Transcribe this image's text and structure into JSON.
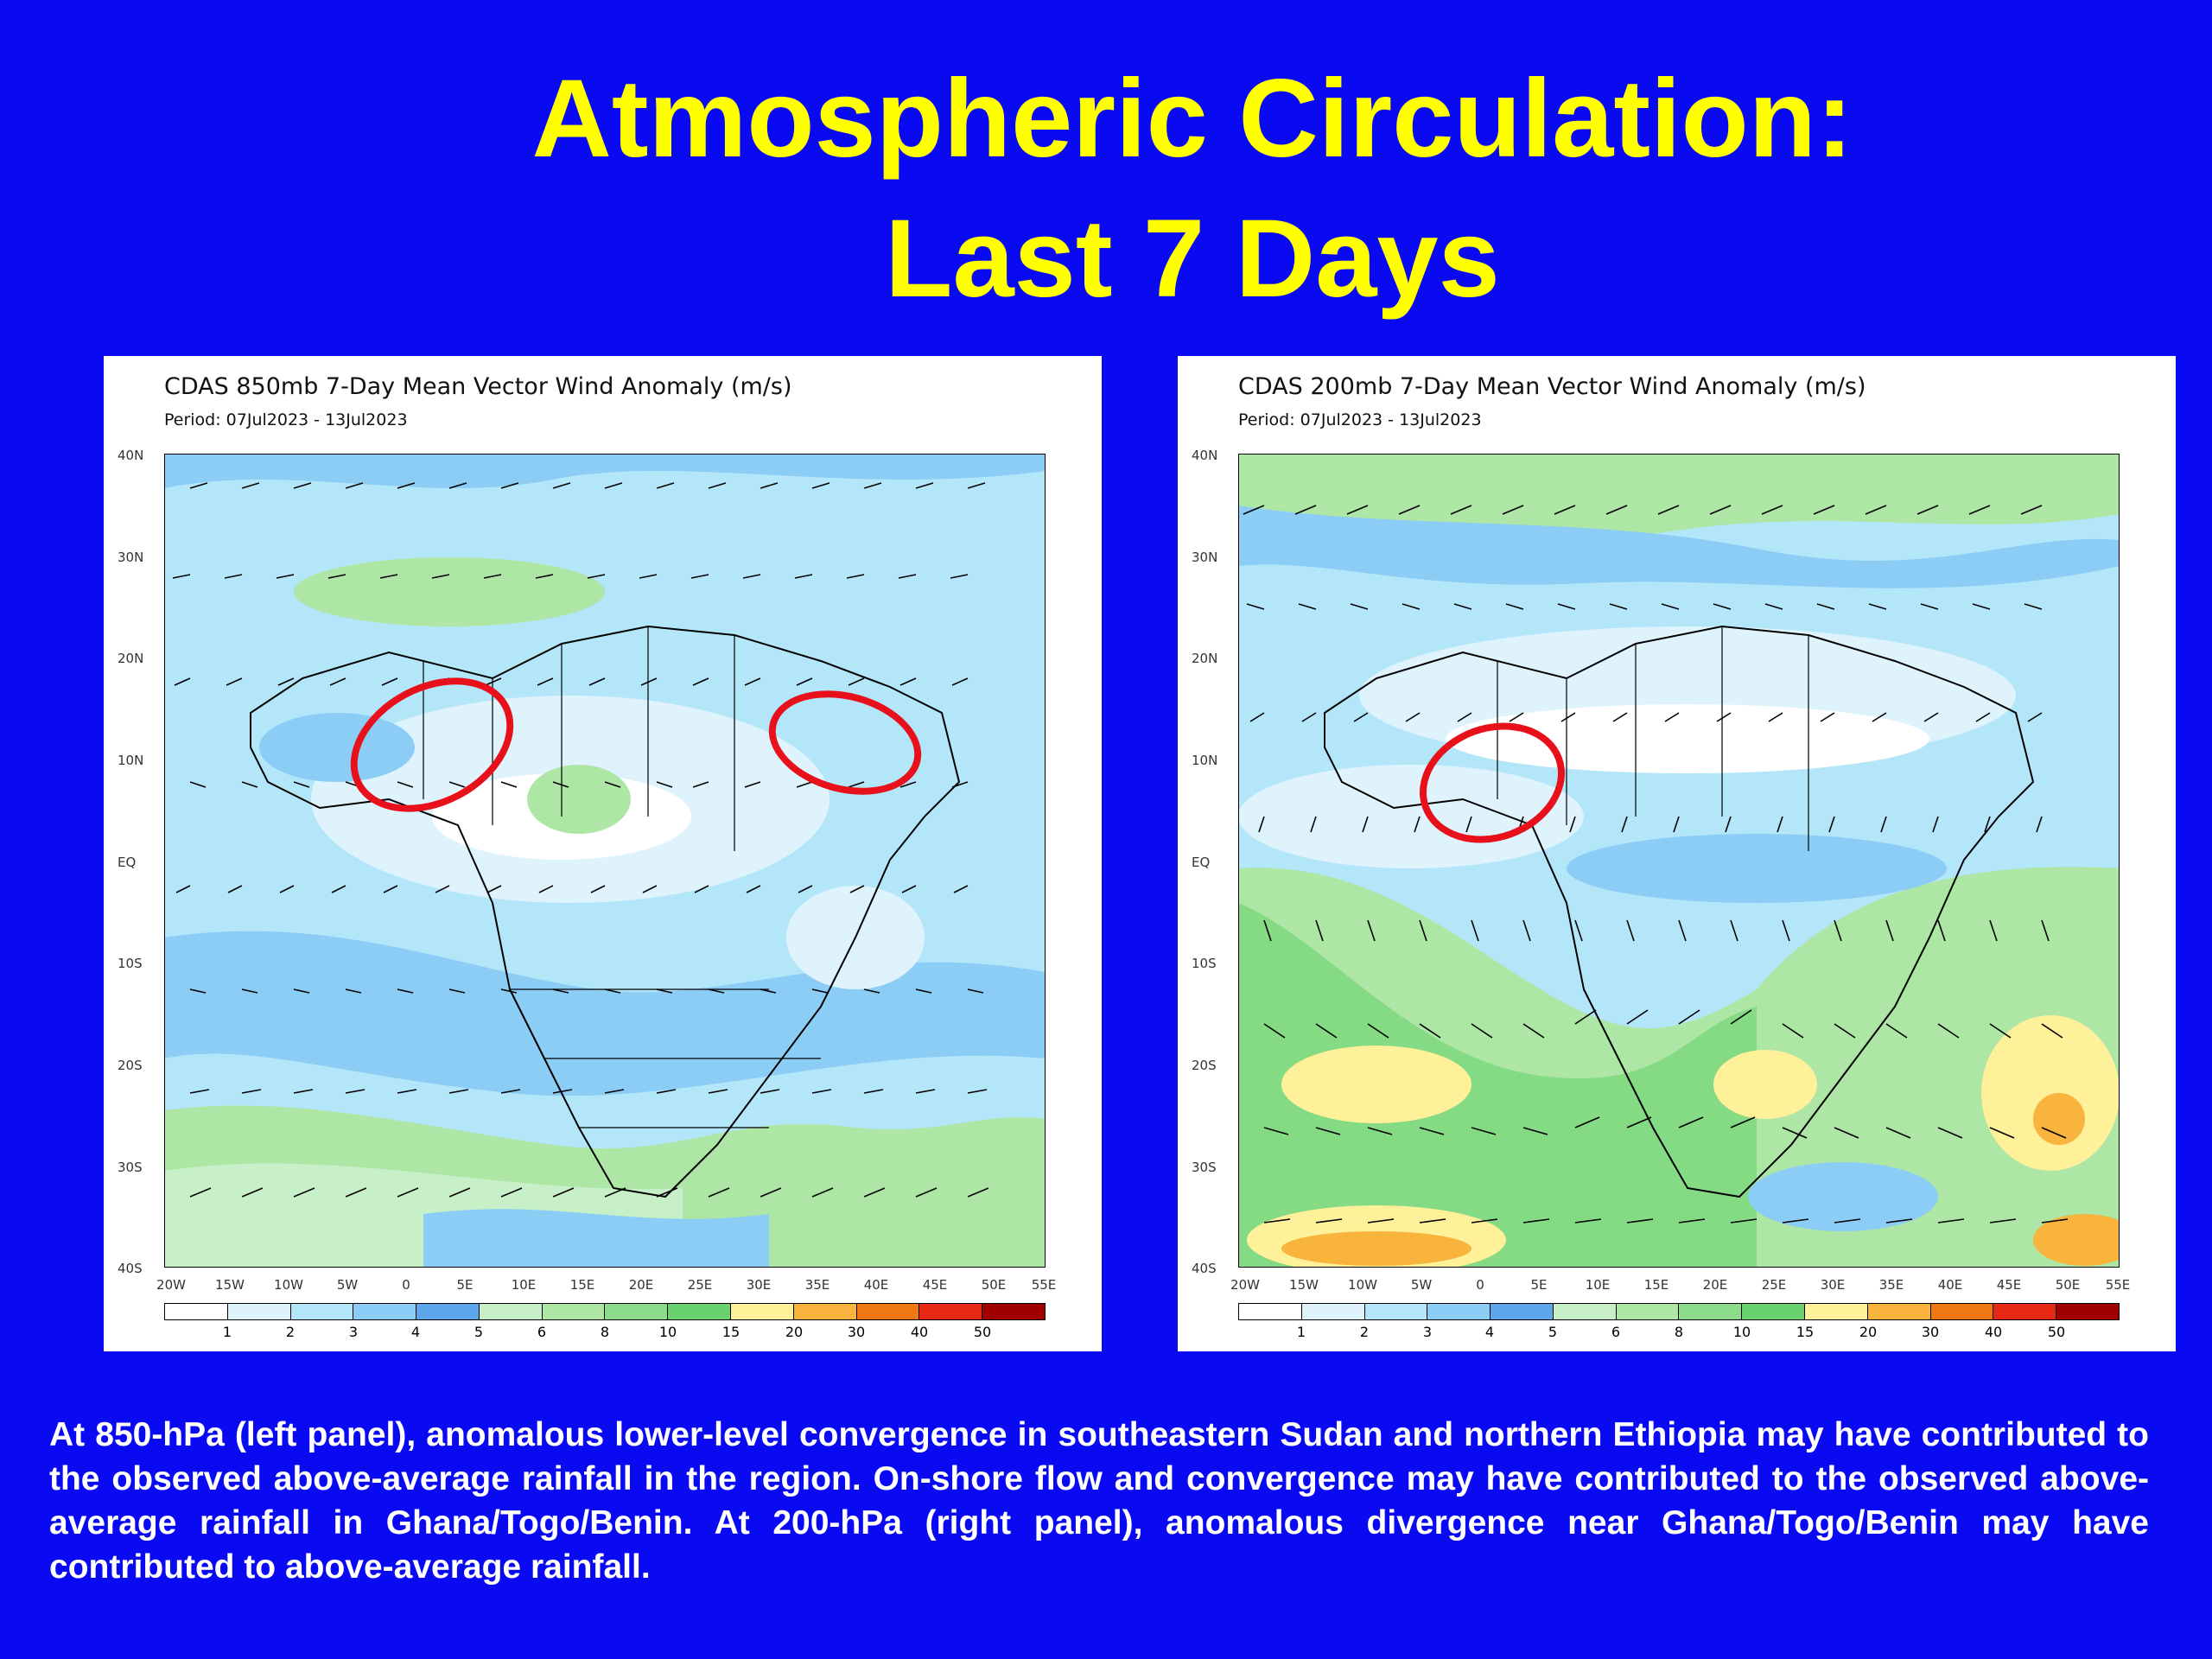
{
  "slide": {
    "title_line1": "Atmospheric Circulation:",
    "title_line2": "Last 7 Days",
    "caption": "At 850-hPa (left panel), anomalous lower-level convergence in southeastern Sudan and northern Ethiopia may have contributed to the observed above-average rainfall in the region. On-shore flow and convergence may have contributed to the observed above-average rainfall in Ghana/Togo/Benin. At 200-hPa (right panel), anomalous divergence near Ghana/Togo/Benin may have contributed to above-average rainfall."
  },
  "panels": [
    {
      "title": "CDAS 850mb 7-Day Mean Vector Wind Anomaly (m/s)",
      "period": "Period: 07Jul2023 - 13Jul2023",
      "highlights": 2
    },
    {
      "title": "CDAS 200mb 7-Day Mean Vector Wind Anomaly (m/s)",
      "period": "Period: 07Jul2023 - 13Jul2023",
      "highlights": 1
    }
  ],
  "axes": {
    "lat_labels": [
      "40N",
      "30N",
      "20N",
      "10N",
      "EQ",
      "10S",
      "20S",
      "30S",
      "40S"
    ],
    "lon_labels": [
      "20W",
      "15W",
      "10W",
      "5W",
      "0",
      "5E",
      "10E",
      "15E",
      "20E",
      "25E",
      "30E",
      "35E",
      "40E",
      "45E",
      "50E",
      "55E"
    ]
  },
  "colorbar": {
    "labels": [
      "1",
      "2",
      "3",
      "4",
      "5",
      "6",
      "8",
      "10",
      "15",
      "20",
      "30",
      "40",
      "50"
    ],
    "colors": [
      "#ffffff",
      "#dff3fc",
      "#b4e6fa",
      "#8ccdf5",
      "#5ea6ec",
      "#c8f0c8",
      "#aee6a6",
      "#8cdc8c",
      "#69d26e",
      "#fff09a",
      "#f8b43c",
      "#f07814",
      "#e62814",
      "#a00000"
    ]
  },
  "highlight_color": "#e8101a"
}
